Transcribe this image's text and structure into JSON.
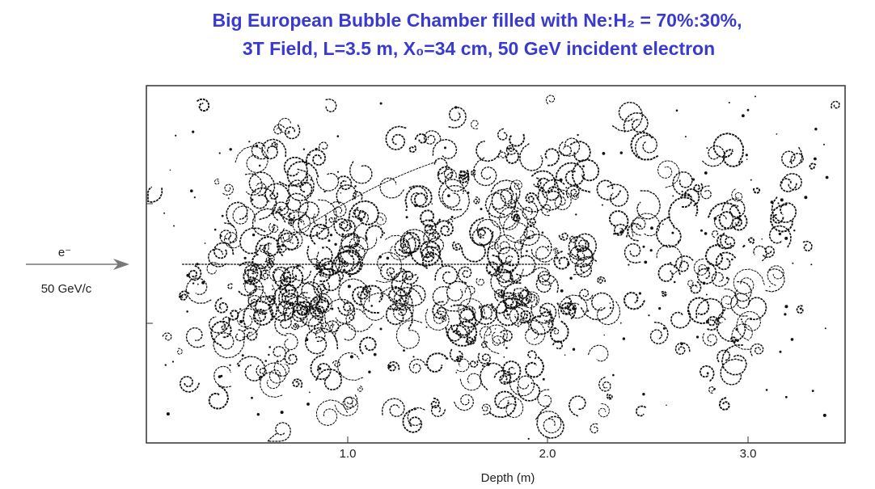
{
  "header": {
    "title_line_1": "Big European Bubble Chamber filled with Ne:H₂ = 70%:30%,",
    "title_line_2": "3T Field, L=3.5 m, X₀=34 cm, 50 GeV incident electron"
  },
  "beam": {
    "particle": "e⁻",
    "momentum": "50 GeV/c"
  },
  "axis": {
    "label": "Depth (m)",
    "ticks": [
      "1.0",
      "2.0",
      "3.0"
    ]
  }
}
